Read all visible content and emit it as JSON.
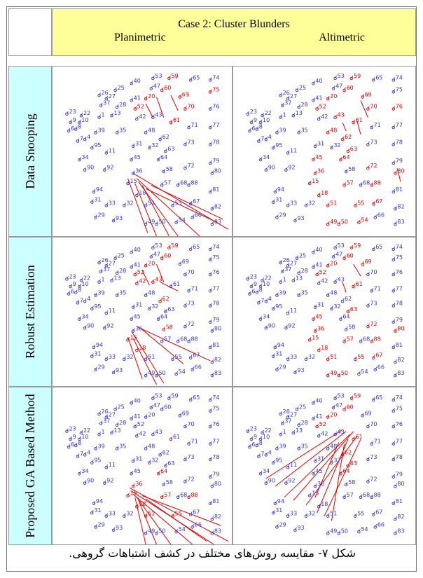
{
  "table": {
    "header": {
      "title": "Case 2: Cluster Blunders",
      "col1": "Planimetric",
      "col2": "Altimetric"
    },
    "rows": [
      {
        "label": "Data Snooping"
      },
      {
        "label": "Robust Estimation"
      },
      {
        "label": "Proposed GA Based Method"
      }
    ]
  },
  "caption": "شکل ۷- مقایسه روش‌های مختلف در کشف اشتباهات گروهی.",
  "colors": {
    "header_bg": "#ffff99",
    "row_label_bg": "#ccffff",
    "point_color": "#3333cc",
    "blunder_color": "#e00000"
  },
  "points": [
    {
      "id": "53",
      "x": 0.56,
      "y": 0.07
    },
    {
      "id": "59",
      "x": 0.65,
      "y": 0.07
    },
    {
      "id": "65",
      "x": 0.77,
      "y": 0.08
    },
    {
      "id": "74",
      "x": 0.88,
      "y": 0.08
    },
    {
      "id": "40",
      "x": 0.44,
      "y": 0.1
    },
    {
      "id": "47",
      "x": 0.55,
      "y": 0.13
    },
    {
      "id": "60",
      "x": 0.61,
      "y": 0.14
    },
    {
      "id": "75",
      "x": 0.88,
      "y": 0.15
    },
    {
      "id": "25",
      "x": 0.35,
      "y": 0.14
    },
    {
      "id": "26",
      "x": 0.26,
      "y": 0.17
    },
    {
      "id": "27",
      "x": 0.3,
      "y": 0.19
    },
    {
      "id": "41",
      "x": 0.44,
      "y": 0.2
    },
    {
      "id": "20",
      "x": 0.52,
      "y": 0.19
    },
    {
      "id": "69",
      "x": 0.71,
      "y": 0.18
    },
    {
      "id": "37",
      "x": 0.27,
      "y": 0.23
    },
    {
      "id": "28",
      "x": 0.36,
      "y": 0.24
    },
    {
      "id": "52",
      "x": 0.46,
      "y": 0.25
    },
    {
      "id": "70",
      "x": 0.74,
      "y": 0.25
    },
    {
      "id": "76",
      "x": 0.88,
      "y": 0.25
    },
    {
      "id": "23",
      "x": 0.08,
      "y": 0.28
    },
    {
      "id": "22",
      "x": 0.16,
      "y": 0.29
    },
    {
      "id": "1",
      "x": 0.26,
      "y": 0.3
    },
    {
      "id": "13",
      "x": 0.33,
      "y": 0.29
    },
    {
      "id": "42",
      "x": 0.47,
      "y": 0.31
    },
    {
      "id": "43",
      "x": 0.56,
      "y": 0.3
    },
    {
      "id": "61",
      "x": 0.66,
      "y": 0.33
    },
    {
      "id": "71",
      "x": 0.76,
      "y": 0.36
    },
    {
      "id": "77",
      "x": 0.88,
      "y": 0.36
    },
    {
      "id": "9",
      "x": 0.1,
      "y": 0.33
    },
    {
      "id": "10",
      "x": 0.15,
      "y": 0.33
    },
    {
      "id": "6",
      "x": 0.09,
      "y": 0.38
    },
    {
      "id": "8",
      "x": 0.13,
      "y": 0.37
    },
    {
      "id": "39",
      "x": 0.24,
      "y": 0.39
    },
    {
      "id": "35",
      "x": 0.36,
      "y": 0.39
    },
    {
      "id": "48",
      "x": 0.52,
      "y": 0.39
    },
    {
      "id": "62",
      "x": 0.6,
      "y": 0.43
    },
    {
      "id": "73",
      "x": 0.74,
      "y": 0.46
    },
    {
      "id": "78",
      "x": 0.88,
      "y": 0.46
    },
    {
      "id": "7",
      "x": 0.14,
      "y": 0.44
    },
    {
      "id": "4",
      "x": 0.18,
      "y": 0.43
    },
    {
      "id": "31",
      "x": 0.45,
      "y": 0.47
    },
    {
      "id": "32",
      "x": 0.54,
      "y": 0.48
    },
    {
      "id": "63",
      "x": 0.63,
      "y": 0.5
    },
    {
      "id": "95",
      "x": 0.22,
      "y": 0.48
    },
    {
      "id": "11",
      "x": 0.3,
      "y": 0.51
    },
    {
      "id": "34",
      "x": 0.15,
      "y": 0.55
    },
    {
      "id": "45",
      "x": 0.44,
      "y": 0.55
    },
    {
      "id": "64",
      "x": 0.59,
      "y": 0.55
    },
    {
      "id": "79",
      "x": 0.88,
      "y": 0.57
    },
    {
      "id": "90",
      "x": 0.18,
      "y": 0.61
    },
    {
      "id": "92",
      "x": 0.29,
      "y": 0.61
    },
    {
      "id": "36",
      "x": 0.45,
      "y": 0.63
    },
    {
      "id": "58",
      "x": 0.62,
      "y": 0.62
    },
    {
      "id": "72",
      "x": 0.74,
      "y": 0.6
    },
    {
      "id": "80",
      "x": 0.89,
      "y": 0.63
    },
    {
      "id": "15",
      "x": 0.42,
      "y": 0.69
    },
    {
      "id": "57",
      "x": 0.61,
      "y": 0.7
    },
    {
      "id": "68",
      "x": 0.7,
      "y": 0.7
    },
    {
      "id": "88",
      "x": 0.76,
      "y": 0.7
    },
    {
      "id": "94",
      "x": 0.23,
      "y": 0.74
    },
    {
      "id": "18",
      "x": 0.47,
      "y": 0.76
    },
    {
      "id": "81",
      "x": 0.88,
      "y": 0.74
    },
    {
      "id": "31b",
      "x": 0.22,
      "y": 0.8
    },
    {
      "id": "33",
      "x": 0.3,
      "y": 0.82
    },
    {
      "id": "32b",
      "x": 0.4,
      "y": 0.82
    },
    {
      "id": "51",
      "x": 0.52,
      "y": 0.82
    },
    {
      "id": "55",
      "x": 0.67,
      "y": 0.82
    },
    {
      "id": "67",
      "x": 0.77,
      "y": 0.81
    },
    {
      "id": "82",
      "x": 0.89,
      "y": 0.84
    },
    {
      "id": "29",
      "x": 0.24,
      "y": 0.89
    },
    {
      "id": "93",
      "x": 0.34,
      "y": 0.91
    },
    {
      "id": "49",
      "x": 0.52,
      "y": 0.93
    },
    {
      "id": "50",
      "x": 0.58,
      "y": 0.93
    },
    {
      "id": "54",
      "x": 0.69,
      "y": 0.92
    },
    {
      "id": "66",
      "x": 0.78,
      "y": 0.89
    },
    {
      "id": "83",
      "x": 0.89,
      "y": 0.93
    }
  ],
  "panels": [
    {
      "name": "data-snooping-planimetric",
      "red": [
        "59",
        "75",
        "60",
        "20",
        "52",
        "69",
        "70",
        "61"
      ],
      "vectors": [
        [
          0.45,
          0.63,
          0.98,
          0.96
        ],
        [
          0.47,
          0.66,
          0.82,
          1.0
        ],
        [
          0.48,
          0.68,
          0.7,
          1.0
        ],
        [
          0.5,
          0.7,
          0.65,
          1.0
        ],
        [
          0.46,
          0.69,
          0.58,
          1.0
        ],
        [
          0.52,
          0.72,
          0.92,
          0.92
        ],
        [
          0.55,
          0.7,
          0.95,
          0.9
        ],
        [
          0.42,
          0.66,
          0.53,
          0.98
        ],
        [
          0.58,
          0.18,
          0.62,
          0.3
        ],
        [
          0.66,
          0.17,
          0.7,
          0.26
        ],
        [
          0.52,
          0.22,
          0.56,
          0.3
        ]
      ]
    },
    {
      "name": "data-snooping-altimetric",
      "red": [
        "59",
        "69",
        "60",
        "20",
        "52",
        "70",
        "61",
        "62",
        "64",
        "72",
        "80",
        "63",
        "45",
        "18",
        "15",
        "36",
        "57",
        "88",
        "51",
        "67",
        "55",
        "50",
        "49",
        "48",
        "43",
        "54",
        "76"
      ],
      "vectors": [
        [
          0.7,
          0.2,
          0.74,
          0.3
        ],
        [
          0.6,
          0.33,
          0.62,
          0.38
        ],
        [
          0.68,
          0.32,
          0.7,
          0.4
        ],
        [
          0.9,
          0.6,
          0.92,
          0.68
        ]
      ]
    },
    {
      "name": "robust-planimetric",
      "red": [
        "59",
        "60",
        "20",
        "52",
        "42",
        "43",
        "62",
        "58",
        "15",
        "18"
      ],
      "vectors": [
        [
          0.44,
          0.63,
          0.62,
          0.98
        ],
        [
          0.47,
          0.6,
          0.88,
          0.83
        ],
        [
          0.45,
          0.68,
          0.58,
          0.99
        ],
        [
          0.5,
          0.62,
          0.73,
          0.85
        ],
        [
          0.42,
          0.67,
          0.5,
          0.95
        ],
        [
          0.58,
          0.18,
          0.62,
          0.3
        ],
        [
          0.6,
          0.3,
          0.7,
          0.36
        ],
        [
          0.5,
          0.22,
          0.54,
          0.32
        ]
      ]
    },
    {
      "name": "robust-altimetric",
      "red": [
        "59",
        "60",
        "20",
        "52",
        "61",
        "69",
        "72",
        "80",
        "63",
        "57",
        "88",
        "51",
        "67",
        "55",
        "49",
        "50",
        "36",
        "18",
        "15",
        "45"
      ],
      "vectors": [
        [
          0.66,
          0.18,
          0.7,
          0.26
        ],
        [
          0.6,
          0.3,
          0.62,
          0.37
        ]
      ]
    },
    {
      "name": "ga-planimetric",
      "red": [
        "15",
        "18",
        "36",
        "57",
        "88",
        "51",
        "55",
        "64"
      ],
      "vectors": [
        [
          0.43,
          0.64,
          0.98,
          0.98
        ],
        [
          0.44,
          0.66,
          0.9,
          1.0
        ],
        [
          0.45,
          0.68,
          0.78,
          1.0
        ],
        [
          0.47,
          0.7,
          0.66,
          1.0
        ],
        [
          0.48,
          0.72,
          0.58,
          1.0
        ],
        [
          0.46,
          0.7,
          0.52,
          1.0
        ],
        [
          0.5,
          0.69,
          0.94,
          0.88
        ],
        [
          0.52,
          0.71,
          0.86,
          0.98
        ]
      ]
    },
    {
      "name": "ga-altimetric",
      "red": [
        "59",
        "60",
        "20",
        "52",
        "61",
        "62",
        "63",
        "64"
      ],
      "vectors": [
        [
          0.6,
          0.27,
          0.18,
          0.58
        ],
        [
          0.62,
          0.28,
          0.23,
          0.63
        ],
        [
          0.64,
          0.3,
          0.28,
          0.7
        ],
        [
          0.66,
          0.28,
          0.33,
          0.72
        ],
        [
          0.68,
          0.31,
          0.4,
          0.75
        ],
        [
          0.63,
          0.33,
          0.46,
          0.8
        ],
        [
          0.7,
          0.33,
          0.5,
          0.82
        ],
        [
          0.58,
          0.35,
          0.45,
          0.7
        ],
        [
          0.61,
          0.36,
          0.54,
          0.85
        ]
      ]
    }
  ]
}
